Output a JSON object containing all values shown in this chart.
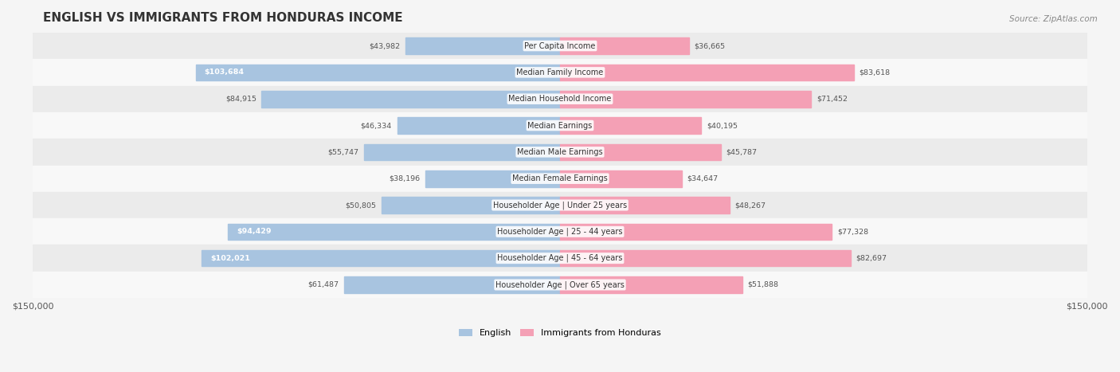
{
  "title": "ENGLISH VS IMMIGRANTS FROM HONDURAS INCOME",
  "source": "Source: ZipAtlas.com",
  "categories": [
    "Per Capita Income",
    "Median Family Income",
    "Median Household Income",
    "Median Earnings",
    "Median Male Earnings",
    "Median Female Earnings",
    "Householder Age | Under 25 years",
    "Householder Age | 25 - 44 years",
    "Householder Age | 45 - 64 years",
    "Householder Age | Over 65 years"
  ],
  "english_values": [
    43982,
    103684,
    84915,
    46334,
    55747,
    38196,
    50805,
    94429,
    102021,
    61487
  ],
  "honduras_values": [
    36665,
    83618,
    71452,
    40195,
    45787,
    34647,
    48267,
    77328,
    82697,
    51888
  ],
  "english_color": "#a8c4e0",
  "honduras_color": "#f4a0b5",
  "max_value": 150000,
  "bg_color": "#f5f5f5",
  "title_fontsize": 11,
  "legend_fontsize": 8
}
